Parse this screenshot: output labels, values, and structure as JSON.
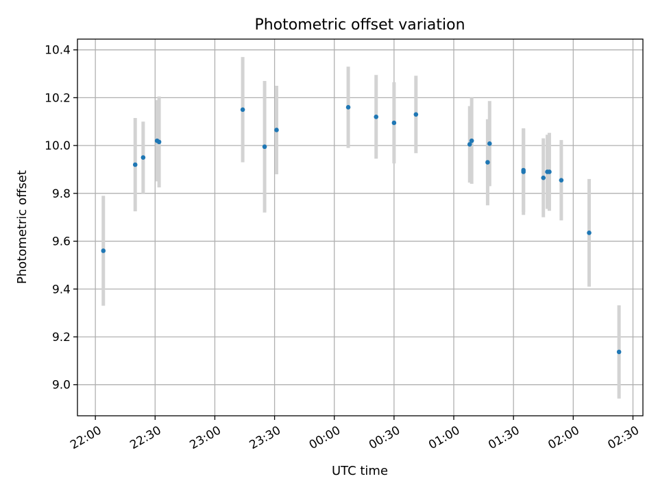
{
  "chart_data": {
    "type": "scatter",
    "title": "Photometric offset variation",
    "xlabel": "UTC time",
    "ylabel": "Photometric offset",
    "x_tick_labels": [
      "22:00",
      "22:30",
      "23:00",
      "23:30",
      "00:00",
      "00:30",
      "01:00",
      "01:30",
      "02:00",
      "02:30"
    ],
    "y_ticks": [
      9.0,
      9.2,
      9.4,
      9.6,
      9.8,
      10.0,
      10.2,
      10.4
    ],
    "y_tick_labels": [
      "9.0",
      "9.2",
      "9.4",
      "9.6",
      "9.8",
      "10.0",
      "10.2",
      "10.4"
    ],
    "xlim": [
      "21:51",
      "02:35"
    ],
    "ylim": [
      8.87,
      10.445
    ],
    "grid": true,
    "point_color": "#1f77b4",
    "errorbar_color": "#d3d3d3",
    "points": [
      {
        "time": "22:04",
        "y": 9.56,
        "err": 0.23
      },
      {
        "time": "22:20",
        "y": 9.92,
        "err": 0.195
      },
      {
        "time": "22:24",
        "y": 9.95,
        "err": 0.15
      },
      {
        "time": "22:31",
        "y": 10.02,
        "err": 0.17
      },
      {
        "time": "22:32",
        "y": 10.015,
        "err": 0.19
      },
      {
        "time": "23:14",
        "y": 10.15,
        "err": 0.22
      },
      {
        "time": "23:25",
        "y": 9.995,
        "err": 0.275
      },
      {
        "time": "23:31",
        "y": 10.065,
        "err": 0.185
      },
      {
        "time": "00:07",
        "y": 10.16,
        "err": 0.17
      },
      {
        "time": "00:21",
        "y": 10.12,
        "err": 0.175
      },
      {
        "time": "00:30",
        "y": 10.095,
        "err": 0.17
      },
      {
        "time": "00:41",
        "y": 10.13,
        "err": 0.162
      },
      {
        "time": "01:08",
        "y": 10.005,
        "err": 0.16
      },
      {
        "time": "01:09",
        "y": 10.02,
        "err": 0.18
      },
      {
        "time": "01:17",
        "y": 9.93,
        "err": 0.18
      },
      {
        "time": "01:18",
        "y": 10.008,
        "err": 0.178
      },
      {
        "time": "01:35",
        "y": 9.89,
        "err": 0.18
      },
      {
        "time": "01:35",
        "y": 9.897,
        "err": 0.175
      },
      {
        "time": "01:45",
        "y": 9.865,
        "err": 0.165
      },
      {
        "time": "01:47",
        "y": 9.89,
        "err": 0.155
      },
      {
        "time": "01:48",
        "y": 9.89,
        "err": 0.163
      },
      {
        "time": "01:54",
        "y": 9.855,
        "err": 0.168
      },
      {
        "time": "02:08",
        "y": 9.635,
        "err": 0.225
      },
      {
        "time": "02:23",
        "y": 9.137,
        "err": 0.195
      }
    ]
  }
}
